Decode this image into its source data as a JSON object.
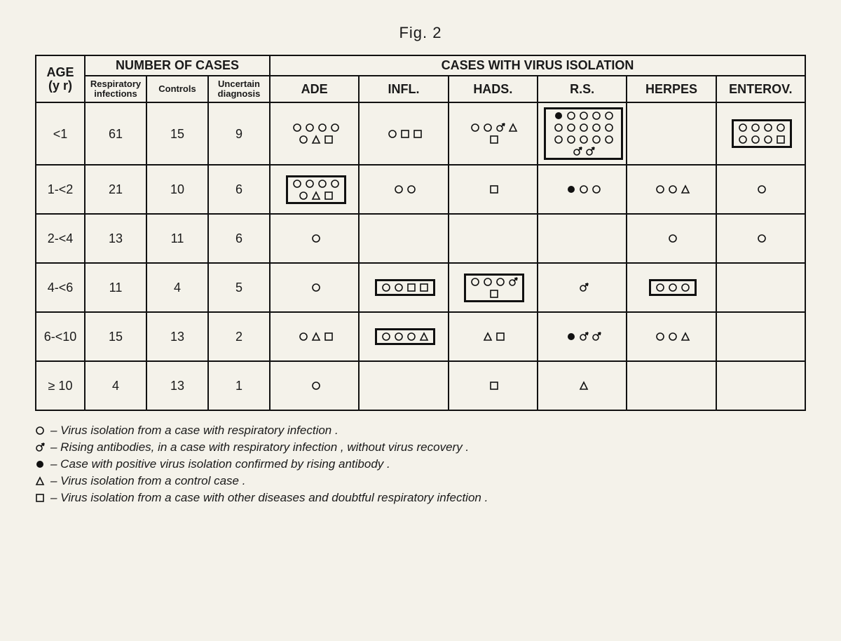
{
  "figure_label": "Fig. 2",
  "headers": {
    "age": "AGE\n(y r)",
    "number_of_cases": "NUMBER OF CASES",
    "cases_with_virus": "CASES WITH VIRUS ISOLATION",
    "resp": "Respiratory\ninfections",
    "controls": "Controls",
    "uncertain": "Uncertain\ndiagnosis",
    "virus_cols": [
      "ADE",
      "INFL.",
      "HADS.",
      "R.S.",
      "HERPES",
      "ENTEROV."
    ]
  },
  "colors": {
    "stroke": "#111",
    "fill_black": "#111",
    "bg": "#f4f2ea"
  },
  "symbol_size": 14,
  "rows": [
    {
      "age": "<1",
      "resp": "61",
      "controls": "15",
      "uncertain": "9",
      "cells": [
        {
          "syms": [
            "o",
            "o",
            "o",
            "o",
            "o",
            "t",
            "s"
          ],
          "boxed": false,
          "per_row": 4
        },
        {
          "syms": [
            "o",
            "s",
            "s"
          ],
          "boxed": false,
          "per_row": 3
        },
        {
          "syms": [
            "o",
            "o",
            "m",
            "t",
            "s"
          ],
          "boxed": false,
          "per_row": 4
        },
        {
          "syms": [
            "f",
            "o",
            "o",
            "o",
            "o",
            "o",
            "o",
            "o",
            "o",
            "o",
            "o",
            "o",
            "o",
            "o",
            "o",
            "m",
            "m"
          ],
          "boxed": true,
          "per_row": 6
        },
        {
          "syms": [],
          "boxed": false
        },
        {
          "syms": [
            "o",
            "o",
            "o",
            "o",
            "o",
            "o",
            "o",
            "s"
          ],
          "boxed": true,
          "per_row": 4
        }
      ]
    },
    {
      "age": "1-<2",
      "resp": "21",
      "controls": "10",
      "uncertain": "6",
      "cells": [
        {
          "syms": [
            "o",
            "o",
            "o",
            "o",
            "o",
            "t",
            "s"
          ],
          "boxed": true,
          "per_row": 4
        },
        {
          "syms": [
            "o",
            "o"
          ],
          "boxed": false
        },
        {
          "syms": [
            "s"
          ],
          "boxed": false
        },
        {
          "syms": [
            "f",
            "o",
            "o"
          ],
          "boxed": false
        },
        {
          "syms": [
            "o",
            "o",
            "t"
          ],
          "boxed": false
        },
        {
          "syms": [
            "o"
          ],
          "boxed": false
        }
      ]
    },
    {
      "age": "2-<4",
      "resp": "13",
      "controls": "11",
      "uncertain": "6",
      "cells": [
        {
          "syms": [
            "o"
          ],
          "boxed": false
        },
        {
          "syms": [],
          "boxed": false
        },
        {
          "syms": [],
          "boxed": false
        },
        {
          "syms": [],
          "boxed": false
        },
        {
          "syms": [
            "o"
          ],
          "boxed": false
        },
        {
          "syms": [
            "o"
          ],
          "boxed": false
        }
      ]
    },
    {
      "age": "4-<6",
      "resp": "11",
      "controls": "4",
      "uncertain": "5",
      "cells": [
        {
          "syms": [
            "o"
          ],
          "boxed": false
        },
        {
          "syms": [
            "o",
            "o",
            "s",
            "s"
          ],
          "boxed": true,
          "per_row": 4
        },
        {
          "syms": [
            "o",
            "o",
            "o",
            "m",
            "s"
          ],
          "boxed": true,
          "per_row": 4
        },
        {
          "syms": [
            "m"
          ],
          "boxed": false
        },
        {
          "syms": [
            "o",
            "o",
            "o"
          ],
          "boxed": true
        },
        {
          "syms": [],
          "boxed": false
        }
      ]
    },
    {
      "age": "6-<10",
      "resp": "15",
      "controls": "13",
      "uncertain": "2",
      "cells": [
        {
          "syms": [
            "o",
            "t",
            "s"
          ],
          "boxed": false
        },
        {
          "syms": [
            "o",
            "o",
            "o",
            "t"
          ],
          "boxed": true,
          "per_row": 4
        },
        {
          "syms": [
            "t",
            "s"
          ],
          "boxed": false
        },
        {
          "syms": [
            "f",
            "m",
            "m"
          ],
          "boxed": false
        },
        {
          "syms": [
            "o",
            "o",
            "t"
          ],
          "boxed": false
        },
        {
          "syms": [],
          "boxed": false
        }
      ]
    },
    {
      "age": "≥ 10",
      "resp": "4",
      "controls": "13",
      "uncertain": "1",
      "cells": [
        {
          "syms": [
            "o"
          ],
          "boxed": false
        },
        {
          "syms": [],
          "boxed": false
        },
        {
          "syms": [
            "s"
          ],
          "boxed": false
        },
        {
          "syms": [
            "t"
          ],
          "boxed": false
        },
        {
          "syms": [],
          "boxed": false
        },
        {
          "syms": [],
          "boxed": false
        }
      ]
    }
  ],
  "legend": [
    {
      "sym": "o",
      "text": "– Virus isolation from a case with respiratory infection ."
    },
    {
      "sym": "m",
      "text": "– Rising antibodies, in a case with respiratory infection , without virus recovery ."
    },
    {
      "sym": "f",
      "text": "– Case with positive virus isolation confirmed by rising antibody ."
    },
    {
      "sym": "t",
      "text": "– Virus isolation from a control case ."
    },
    {
      "sym": "s",
      "text": "– Virus isolation from a case with other diseases and doubtful respiratory infection ."
    }
  ]
}
